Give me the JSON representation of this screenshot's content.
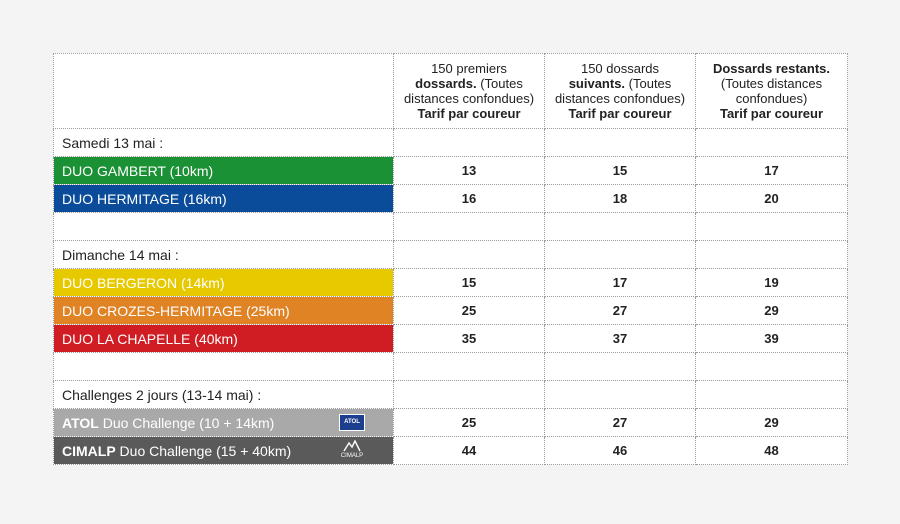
{
  "header": {
    "col1": {
      "bold": "150 premiers dossards.",
      "normal": " (Toutes distances confondues)",
      "sub": "Tarif par coureur",
      "line1": "150 premiers"
    },
    "col2": {
      "line1": "150 dossards",
      "bold": "suivants.",
      "normal": " (Toutes distances confondues)",
      "sub": "Tarif par coureur"
    },
    "col3": {
      "bold": "Dossards restants.",
      "normal": "(Toutes distances confondues)",
      "sub": "Tarif par coureur"
    }
  },
  "sections": [
    {
      "label": "Samedi 13 mai :",
      "races": [
        {
          "name": "DUO GAMBERT (10km)",
          "color": "#1b9135",
          "prices": [
            "13",
            "15",
            "17"
          ]
        },
        {
          "name": "DUO HERMITAGE (16km)",
          "color": "#0b4c9a",
          "prices": [
            "16",
            "18",
            "20"
          ]
        }
      ]
    },
    {
      "label": "Dimanche 14 mai :",
      "races": [
        {
          "name": "DUO BERGERON (14km)",
          "color": "#e7c900",
          "prices": [
            "15",
            "17",
            "19"
          ]
        },
        {
          "name": "DUO CROZES-HERMITAGE (25km)",
          "color": "#df8325",
          "prices": [
            "25",
            "27",
            "29"
          ]
        },
        {
          "name": "DUO LA CHAPELLE (40km)",
          "color": "#cf1d23",
          "prices": [
            "35",
            "37",
            "39"
          ]
        }
      ]
    },
    {
      "label": "Challenges 2 jours (13-14 mai) :",
      "races": [
        {
          "brand": "ATOL",
          "name": " Duo Challenge (10 + 14km)",
          "color": "#a9a9a9",
          "logo": "ATOL",
          "prices": [
            "25",
            "27",
            "29"
          ]
        },
        {
          "brand": "CIMALP",
          "name": " Duo Challenge (15 + 40km)",
          "color": "#5a5a5a",
          "logo": "CIMALP",
          "prices": [
            "44",
            "46",
            "48"
          ]
        }
      ]
    }
  ]
}
